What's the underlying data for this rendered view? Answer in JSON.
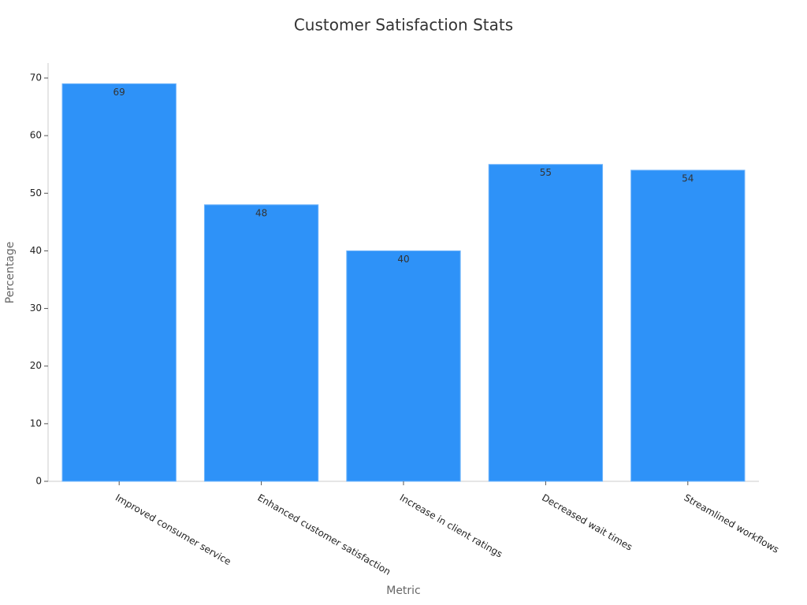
{
  "chart_data": {
    "type": "bar",
    "title": "Customer Satisfaction Stats",
    "x_label": "Metric",
    "y_label": "Percentage",
    "categories": [
      "Improved consumer service",
      "Enhanced customer satisfaction",
      "Increase in client ratings",
      "Decreased wait times",
      "Streamlined workflows"
    ],
    "values": [
      69,
      48,
      40,
      55,
      54
    ],
    "color": "#2e92f8",
    "ylim": [
      0,
      72.6
    ],
    "yticks": [
      0,
      10,
      20,
      30,
      40,
      50,
      60,
      70
    ],
    "grid": false
  }
}
